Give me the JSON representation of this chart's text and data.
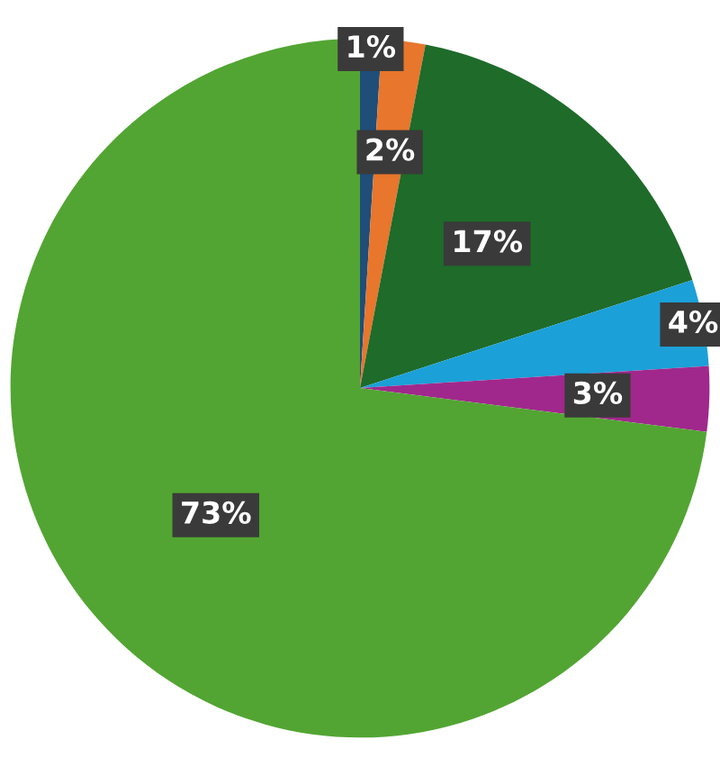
{
  "chart_data": {
    "type": "pie",
    "categories": [
      null,
      null,
      null,
      null,
      null,
      null
    ],
    "values": [
      1,
      2,
      17,
      4,
      3,
      73
    ],
    "colors": [
      "#1f4e79",
      "#e8762c",
      "#1e6b2a",
      "#1ba0d8",
      "#a0288c",
      "#52a532"
    ],
    "value_labels": [
      "1%",
      "2%",
      "17%",
      "4%",
      "3%",
      "73%"
    ]
  }
}
